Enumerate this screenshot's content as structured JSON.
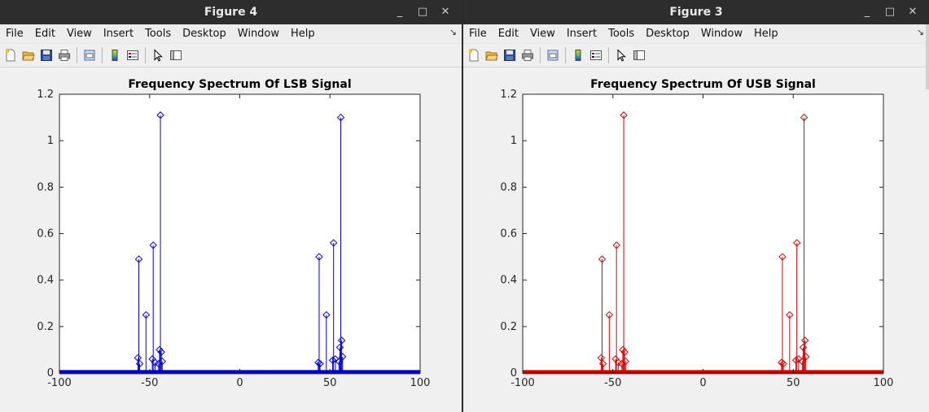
{
  "menu": [
    "File",
    "Edit",
    "View",
    "Insert",
    "Tools",
    "Desktop",
    "Window",
    "Help"
  ],
  "window_controls": {
    "minimize": "_",
    "maximize": "□",
    "close": "✕"
  },
  "dock_glyph": "↘",
  "toolbar_icons": [
    "new-figure-icon",
    "open-file-icon",
    "save-icon",
    "print-icon",
    "print-preview-icon",
    "colorbar-icon",
    "legend-icon",
    "pointer-icon",
    "plot-tools-icon"
  ],
  "windows": [
    {
      "title": "Figure 4",
      "chart_data": {
        "type": "stem",
        "title": "Frequency Spectrum Of LSB Signal",
        "xlabel": "",
        "ylabel": "",
        "xlim": [
          -100,
          100
        ],
        "ylim": [
          0,
          1.2
        ],
        "xticks": [
          -100,
          -50,
          0,
          50,
          100
        ],
        "yticks": [
          0,
          0.2,
          0.4,
          0.6,
          0.8,
          1,
          1.2
        ],
        "ytick_labels": [
          "0",
          "0.2",
          "0.4",
          "0.6",
          "0.8",
          "1",
          "1.2"
        ],
        "color": "#0000d8",
        "marker": "diamond",
        "grid": false,
        "points": [
          {
            "x": -56,
            "y": 0.49
          },
          {
            "x": -52,
            "y": 0.25
          },
          {
            "x": -48,
            "y": 0.55
          },
          {
            "x": -44,
            "y": 1.11
          },
          {
            "x": -56.5,
            "y": 0.065
          },
          {
            "x": -55.5,
            "y": 0.04
          },
          {
            "x": -48.5,
            "y": 0.06
          },
          {
            "x": -47,
            "y": 0.045
          },
          {
            "x": -44.5,
            "y": 0.1
          },
          {
            "x": -43.5,
            "y": 0.09
          },
          {
            "x": -43,
            "y": 0.05
          },
          {
            "x": -45,
            "y": 0.04
          },
          {
            "x": 44,
            "y": 0.5
          },
          {
            "x": 48,
            "y": 0.25
          },
          {
            "x": 52,
            "y": 0.56
          },
          {
            "x": 56,
            "y": 1.1
          },
          {
            "x": 43.5,
            "y": 0.045
          },
          {
            "x": 44.5,
            "y": 0.04
          },
          {
            "x": 51.5,
            "y": 0.055
          },
          {
            "x": 53,
            "y": 0.06
          },
          {
            "x": 55.5,
            "y": 0.11
          },
          {
            "x": 56.5,
            "y": 0.14
          },
          {
            "x": 57,
            "y": 0.07
          },
          {
            "x": 55,
            "y": 0.05
          }
        ]
      }
    },
    {
      "title": "Figure 3",
      "chart_data": {
        "type": "stem",
        "title": "Frequency Spectrum Of USB Signal",
        "xlabel": "",
        "ylabel": "",
        "xlim": [
          -100,
          100
        ],
        "ylim": [
          0,
          1.2
        ],
        "xticks": [
          -100,
          -50,
          0,
          50,
          100
        ],
        "yticks": [
          0,
          0.2,
          0.4,
          0.6,
          0.8,
          1,
          1.2
        ],
        "ytick_labels": [
          "0",
          "0.2",
          "0.4",
          "0.6",
          "0.8",
          "1",
          "1.2"
        ],
        "color": "#dd0000",
        "marker": "diamond",
        "grid": false,
        "points": [
          {
            "x": -56,
            "y": 0.49
          },
          {
            "x": -52,
            "y": 0.25
          },
          {
            "x": -48,
            "y": 0.55
          },
          {
            "x": -44,
            "y": 1.11
          },
          {
            "x": -56.5,
            "y": 0.065
          },
          {
            "x": -55.5,
            "y": 0.04
          },
          {
            "x": -48.5,
            "y": 0.06
          },
          {
            "x": -47,
            "y": 0.045
          },
          {
            "x": -44.5,
            "y": 0.1
          },
          {
            "x": -43.5,
            "y": 0.09
          },
          {
            "x": -43,
            "y": 0.05
          },
          {
            "x": -45,
            "y": 0.04
          },
          {
            "x": 44,
            "y": 0.5
          },
          {
            "x": 48,
            "y": 0.25
          },
          {
            "x": 52,
            "y": 0.56
          },
          {
            "x": 56,
            "y": 1.1
          },
          {
            "x": 43.5,
            "y": 0.045
          },
          {
            "x": 44.5,
            "y": 0.04
          },
          {
            "x": 51.5,
            "y": 0.055
          },
          {
            "x": 53,
            "y": 0.06
          },
          {
            "x": 55.5,
            "y": 0.11
          },
          {
            "x": 56.5,
            "y": 0.14
          },
          {
            "x": 57,
            "y": 0.07
          },
          {
            "x": 55,
            "y": 0.05
          }
        ]
      }
    }
  ]
}
